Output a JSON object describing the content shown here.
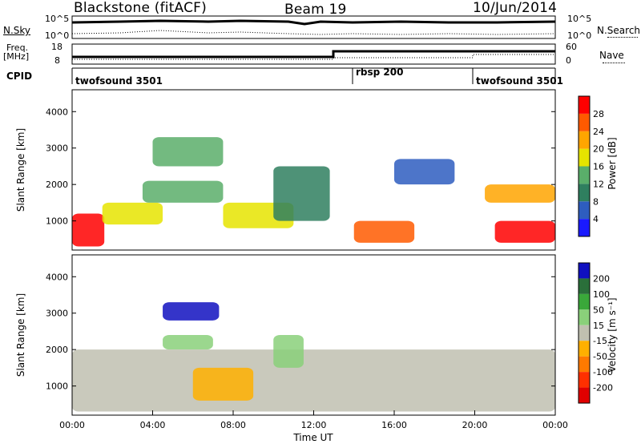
{
  "header": {
    "station": "Blackstone (fitACF)",
    "beam": "Beam 19",
    "date": "10/Jun/2014"
  },
  "side_labels": {
    "nsky": "N.Sky",
    "nsearch": "N.Search",
    "freq": "Freq.",
    "freq_unit": "[MHz]",
    "nave": "Nave",
    "cpid": "CPID"
  },
  "noise_axis": {
    "left_ticks": [
      "10^5",
      "10^0"
    ],
    "right_ticks": [
      "10^5",
      "10^0"
    ]
  },
  "freq_axis": {
    "left_ticks": [
      "18",
      "8"
    ],
    "right_ticks": [
      "60",
      "0"
    ]
  },
  "cpid_segments": [
    {
      "label": "twofsound 3501",
      "start_hour": 0,
      "end_hour": 14
    },
    {
      "label": "rbsp 200",
      "start_hour": 14,
      "end_hour": 20
    },
    {
      "label": "twofsound 3501",
      "start_hour": 20,
      "end_hour": 24
    }
  ],
  "chart_data": [
    {
      "type": "heatmap",
      "name": "power-panel",
      "xlabel": "",
      "ylabel": "Slant Range [km]",
      "xlim": [
        0,
        24
      ],
      "ylim": [
        200,
        4600
      ],
      "yticks": [
        1000,
        2000,
        3000,
        4000
      ],
      "colorbar": {
        "label": "Power [dB]",
        "ticks": [
          "4",
          "8",
          "12",
          "16",
          "20",
          "24",
          "28"
        ],
        "colors": [
          "#1a1aff",
          "#2e5dbf",
          "#2f7f5f",
          "#5aae6a",
          "#e6e400",
          "#ffa500",
          "#ff5a00",
          "#ff0000"
        ]
      },
      "regions": [
        {
          "t": [
            0,
            1.6
          ],
          "r": [
            300,
            1200
          ],
          "level": 7
        },
        {
          "t": [
            1.5,
            4.5
          ],
          "r": [
            900,
            1500
          ],
          "level": 4
        },
        {
          "t": [
            3.5,
            7.5
          ],
          "r": [
            1500,
            2100
          ],
          "level": 3
        },
        {
          "t": [
            4,
            7.5
          ],
          "r": [
            2500,
            3300
          ],
          "level": 3
        },
        {
          "t": [
            7.5,
            11
          ],
          "r": [
            800,
            1500
          ],
          "level": 4
        },
        {
          "t": [
            10,
            12.8
          ],
          "r": [
            1000,
            2500
          ],
          "level": 2
        },
        {
          "t": [
            14,
            17
          ],
          "r": [
            400,
            1000
          ],
          "level": 6
        },
        {
          "t": [
            16,
            19
          ],
          "r": [
            2000,
            2700
          ],
          "level": 1
        },
        {
          "t": [
            20.5,
            24
          ],
          "r": [
            1500,
            2000
          ],
          "level": 5
        },
        {
          "t": [
            21,
            24
          ],
          "r": [
            400,
            1000
          ],
          "level": 7
        }
      ]
    },
    {
      "type": "heatmap",
      "name": "velocity-panel",
      "xlabel": "Time UT",
      "ylabel": "Slant Range [km]",
      "xlim": [
        0,
        24
      ],
      "ylim": [
        200,
        4600
      ],
      "xticks": [
        "00:00",
        "04:00",
        "08:00",
        "12:00",
        "16:00",
        "20:00",
        "00:00"
      ],
      "yticks": [
        1000,
        2000,
        3000,
        4000
      ],
      "colorbar": {
        "label": "Velocity [m s-1]",
        "ticks": [
          "200",
          "100",
          "50",
          "15",
          "-15",
          "-50",
          "-100",
          "-200"
        ],
        "colors": [
          "#1010c0",
          "#2a6f3a",
          "#3aa83a",
          "#8ad07a",
          "#c0c0b0",
          "#ffb000",
          "#ff7a00",
          "#ff3000",
          "#e00000"
        ]
      },
      "regions": [
        {
          "t": [
            4.5,
            7.3
          ],
          "r": [
            2800,
            3300
          ],
          "level": 0
        },
        {
          "t": [
            4.5,
            7
          ],
          "r": [
            2000,
            2400
          ],
          "level": 3
        },
        {
          "t": [
            0,
            24
          ],
          "r": [
            300,
            2000
          ],
          "level": 4
        },
        {
          "t": [
            6,
            9
          ],
          "r": [
            600,
            1500
          ],
          "level": 5
        },
        {
          "t": [
            10,
            11.5
          ],
          "r": [
            1500,
            2400
          ],
          "level": 3
        }
      ]
    }
  ]
}
